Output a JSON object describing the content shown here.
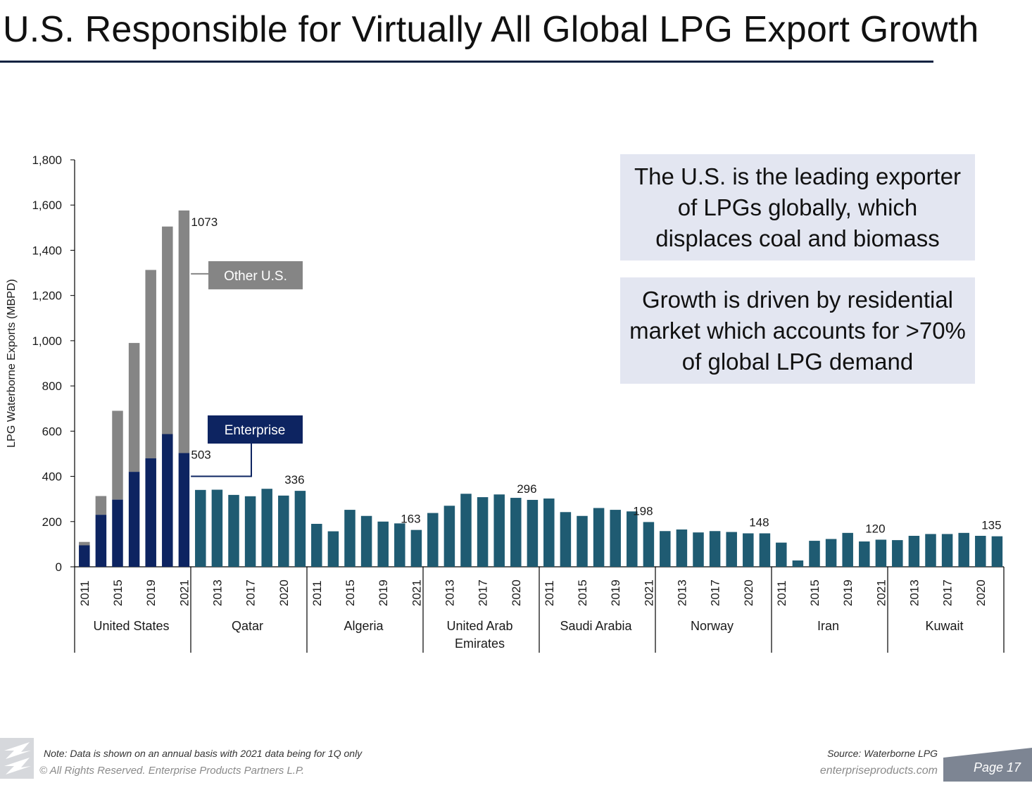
{
  "page": {
    "title": "U.S. Responsible for Virtually All Global LPG Export Growth",
    "callouts": [
      "The U.S. is the leading exporter of LPGs globally, which displaces coal and biomass",
      "Growth is driven by residential market which accounts for >70% of global LPG demand"
    ],
    "note": "Note:  Data is shown on an annual basis with 2021 data being for 1Q only",
    "copyright": "© All Rights Reserved. Enterprise Products Partners L.P.",
    "source": "Source:  Waterborne LPG",
    "website": "enterpriseproducts.com",
    "page_number": "Page 17",
    "logo_icon": "enterprise-logo-icon"
  },
  "chart_data": {
    "type": "bar",
    "ylabel": "LPG Waterborne Exports (MBPD)",
    "ylim": [
      0,
      1800
    ],
    "yticks": [
      0,
      200,
      400,
      600,
      800,
      1000,
      1200,
      1400,
      1600,
      1800
    ],
    "ytick_labels": [
      "0",
      "200",
      "400",
      "600",
      "800",
      "1,000",
      "1,200",
      "1,400",
      "1,600",
      "1,800"
    ],
    "years": [
      "2011",
      "2012",
      "2013",
      "2014",
      "2015",
      "2016",
      "2017",
      "2018",
      "2019",
      "2020",
      "2021"
    ],
    "year_labels_shown": {
      "United States": [
        "2011",
        "2015",
        "2019",
        "2021"
      ],
      "Qatar": [
        "2013",
        "2017",
        "2020"
      ],
      "Algeria": [
        "2011",
        "2015",
        "2019",
        "2021"
      ],
      "United Arab Emirates": [
        "2013",
        "2017",
        "2020"
      ],
      "Saudi Arabia": [
        "2011",
        "2015",
        "2019",
        "2021"
      ],
      "Norway": [
        "2013",
        "2017",
        "2020"
      ],
      "Iran": [
        "2011",
        "2015",
        "2019",
        "2021"
      ],
      "Kuwait": [
        "2013",
        "2017",
        "2020"
      ]
    },
    "colors": {
      "enterprise": "#0d2461",
      "other_us": "#858585",
      "country": "#1f5b72"
    },
    "groups": [
      {
        "name": "United States",
        "label_lines": [
          "United States"
        ],
        "series": [
          {
            "name": "Enterprise",
            "values": [
              95,
              230,
              297,
              420,
              480,
              587,
              503,
              null,
              null,
              null,
              null
            ]
          },
          {
            "name": "Other U.S.",
            "values": [
              15,
              83,
              393,
              570,
              833,
              918,
              1073,
              null,
              null,
              null,
              null
            ]
          }
        ],
        "value_years": [
          "2011",
          "2013",
          "2015",
          "2017",
          "2019",
          "2020",
          "2021"
        ]
      },
      {
        "name": "Qatar",
        "label_lines": [
          "Qatar"
        ],
        "values": [
          340,
          341,
          318,
          312,
          345,
          315,
          336
        ]
      },
      {
        "name": "Algeria",
        "label_lines": [
          "Algeria"
        ],
        "values": [
          190,
          157,
          252,
          225,
          200,
          192,
          163
        ]
      },
      {
        "name": "United Arab Emirates",
        "label_lines": [
          "United Arab",
          "Emirates"
        ],
        "values": [
          238,
          270,
          323,
          308,
          320,
          305,
          296
        ]
      },
      {
        "name": "Saudi Arabia",
        "label_lines": [
          "Saudi Arabia"
        ],
        "values": [
          302,
          242,
          225,
          260,
          252,
          245,
          198
        ]
      },
      {
        "name": "Norway",
        "label_lines": [
          "Norway"
        ],
        "values": [
          158,
          165,
          152,
          158,
          154,
          148,
          148
        ]
      },
      {
        "name": "Iran",
        "label_lines": [
          "Iran"
        ],
        "values": [
          107,
          28,
          115,
          123,
          150,
          112,
          120
        ]
      },
      {
        "name": "Kuwait",
        "label_lines": [
          "Kuwait"
        ],
        "values": [
          118,
          137,
          145,
          145,
          150,
          137,
          135
        ]
      }
    ],
    "data_labels": [
      {
        "group": "United States",
        "series": "Other U.S.",
        "index": 6,
        "text": "1073"
      },
      {
        "group": "United States",
        "series": "Enterprise",
        "index": 6,
        "text": "503"
      },
      {
        "group": "Qatar",
        "index": 6,
        "text": "336"
      },
      {
        "group": "Algeria",
        "index": 6,
        "text": "163"
      },
      {
        "group": "United Arab Emirates",
        "index": 6,
        "text": "296"
      },
      {
        "group": "Saudi Arabia",
        "index": 6,
        "text": "198"
      },
      {
        "group": "Norway",
        "index": 6,
        "text": "148"
      },
      {
        "group": "Iran",
        "index": 6,
        "text": "120"
      },
      {
        "group": "Kuwait",
        "index": 6,
        "text": "135"
      }
    ],
    "legend_callouts": [
      {
        "series": "Other U.S.",
        "text": "Other U.S."
      },
      {
        "series": "Enterprise",
        "text": "Enterprise"
      }
    ]
  }
}
